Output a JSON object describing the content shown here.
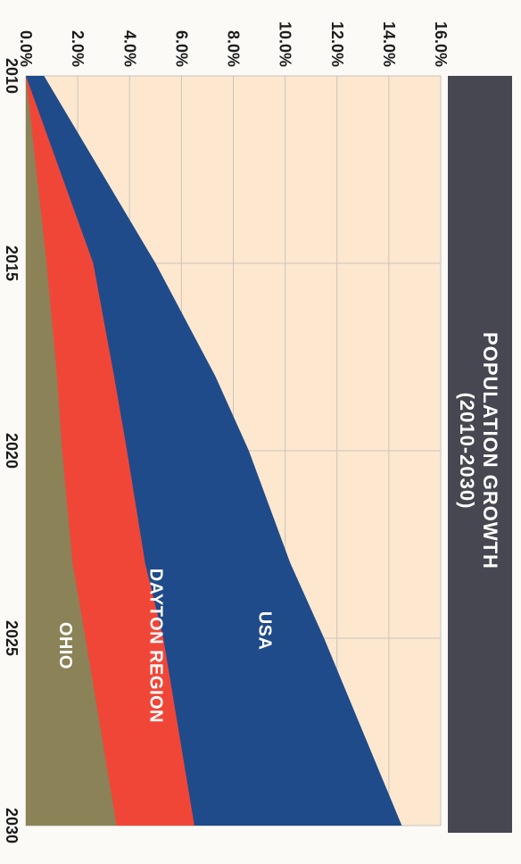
{
  "chart_data": {
    "type": "area",
    "title": "POPULATION GROWTH",
    "subtitle": "(2010-2030)",
    "x": [
      2010,
      2015,
      2018,
      2020,
      2023,
      2025,
      2030
    ],
    "x_ticks": [
      "2010",
      "2015",
      "2020",
      "2025",
      "2030"
    ],
    "y_ticks": [
      "0.0%",
      "2.0%",
      "4.0%",
      "6.0%",
      "8.0%",
      "10.0%",
      "12.0%",
      "14.0%",
      "16.0%"
    ],
    "ylim": [
      0,
      16
    ],
    "xlim": [
      2010,
      2030
    ],
    "grid": true,
    "series": [
      {
        "name": "OHIO",
        "values": [
          0.0,
          0.8,
          1.2,
          1.4,
          1.8,
          2.3,
          3.5
        ],
        "color": "#8b8258"
      },
      {
        "name": "DAYTON REGION",
        "values": [
          0.0,
          2.6,
          3.4,
          3.9,
          4.6,
          5.3,
          6.5
        ],
        "color": "#f04638"
      },
      {
        "name": "USA",
        "values": [
          0.7,
          5.0,
          7.3,
          8.6,
          10.2,
          11.5,
          14.5
        ],
        "color": "#1f4b8a"
      }
    ],
    "area_color": "#fde8cf",
    "title_bg": "#474752"
  }
}
